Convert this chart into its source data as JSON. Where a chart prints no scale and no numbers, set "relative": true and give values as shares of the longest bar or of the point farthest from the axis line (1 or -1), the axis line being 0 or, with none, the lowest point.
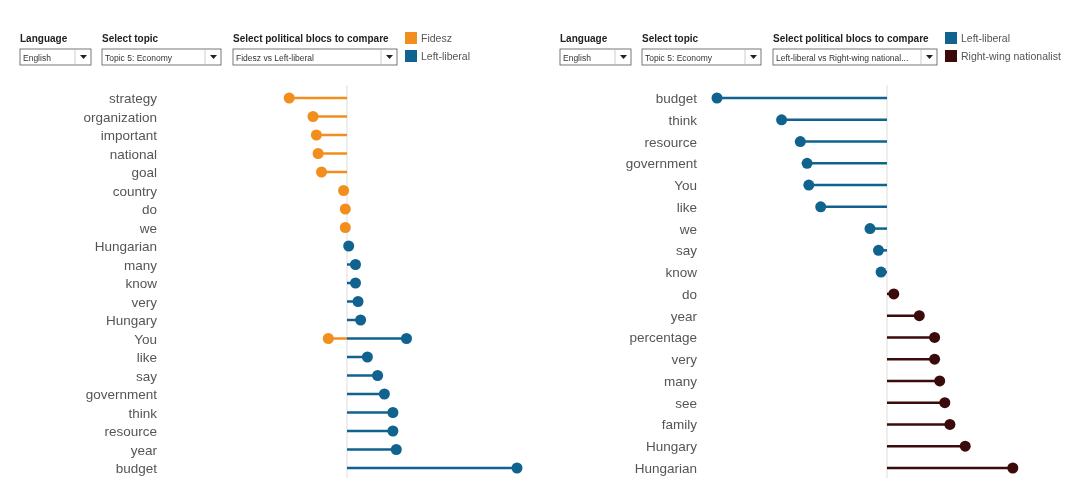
{
  "chart_data": [
    {
      "type": "lollipop",
      "orientation": "horizontal",
      "relative": true,
      "legend": "top right",
      "marker": "circle",
      "annotations": [
        "Language",
        "English",
        "Select topic",
        "Topic 5: Economy",
        "Select political blocs to compare",
        "Fidesz vs Left-liberal"
      ],
      "categories": [
        "strategy",
        "organization",
        "important",
        "national",
        "goal",
        "country",
        "do",
        "we",
        "Hungarian",
        "many",
        "know",
        "very",
        "Hungary",
        "You",
        "like",
        "say",
        "government",
        "think",
        "resource",
        "year",
        "budget"
      ],
      "series": [
        {
          "name": "Fidesz",
          "color": "#f28e1e",
          "values": [
            -0.34,
            -0.2,
            -0.18,
            -0.17,
            -0.15,
            -0.02,
            -0.01,
            -0.01,
            null,
            null,
            null,
            null,
            null,
            -0.11,
            null,
            null,
            null,
            null,
            null,
            null,
            null
          ]
        },
        {
          "name": "Left-liberal",
          "color": "#10628f",
          "values": [
            null,
            null,
            null,
            null,
            null,
            null,
            null,
            null,
            0.01,
            0.05,
            0.05,
            0.065,
            0.08,
            0.35,
            0.12,
            0.18,
            0.22,
            0.27,
            0.27,
            0.29,
            1
          ]
        }
      ]
    },
    {
      "type": "lollipop",
      "orientation": "horizontal",
      "relative": true,
      "legend": "top right",
      "marker": "circle",
      "annotations": [
        "Language",
        "English",
        "Select topic",
        "Topic 5: Economy",
        "Select political blocs to compare",
        "Left-liberal vs Right-wing national..."
      ],
      "categories": [
        "budget",
        "think",
        "resource",
        "government",
        "You",
        "like",
        "we",
        "say",
        "know",
        "do",
        "year",
        "percentage",
        "very",
        "many",
        "see",
        "family",
        "Hungary",
        "Hungarian"
      ],
      "series": [
        {
          "name": "Left-liberal",
          "color": "#10628f",
          "values": [
            -1,
            -0.62,
            -0.51,
            -0.47,
            -0.46,
            -0.39,
            -0.1,
            -0.05,
            -0.035,
            null,
            null,
            null,
            null,
            null,
            null,
            null,
            null,
            null
          ]
        },
        {
          "name": "Right-wing nationalist",
          "color": "#3b0a0a",
          "values": [
            null,
            null,
            null,
            null,
            null,
            null,
            null,
            null,
            null,
            0.04,
            0.19,
            0.28,
            0.28,
            0.31,
            0.34,
            0.37,
            0.46,
            0.74
          ]
        }
      ]
    }
  ]
}
